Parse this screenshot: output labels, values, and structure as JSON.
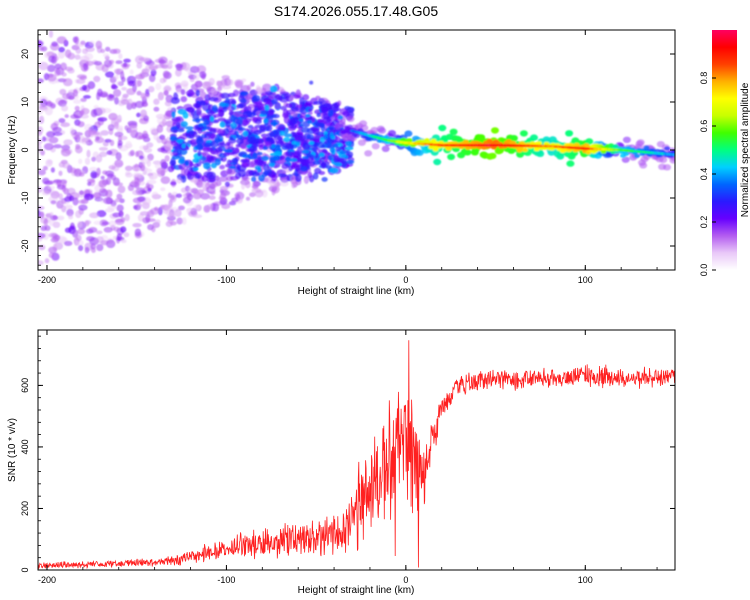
{
  "title": "S174.2026.055.17.48.G05",
  "chart_data": [
    {
      "type": "heatmap",
      "title": "S174.2026.055.17.48.G05",
      "xlabel": "Height of straight line (km)",
      "ylabel": "Frequency (Hz)",
      "xlim": [
        -205,
        150
      ],
      "ylim": [
        -25,
        25
      ],
      "x_ticks": [
        -200,
        -100,
        0,
        100
      ],
      "y_ticks": [
        -20,
        -10,
        0,
        10,
        20
      ],
      "colorbar": {
        "label": "Normalized spectral amplitude",
        "range": [
          0,
          1
        ],
        "ticks": [
          0.0,
          0.2,
          0.4,
          0.6,
          0.8
        ],
        "colors": [
          "#ffffff",
          "#e9c8f8",
          "#b35cf0",
          "#6600ff",
          "#2a1aff",
          "#0066ff",
          "#00d0ff",
          "#00ff80",
          "#40ff00",
          "#c8ff00",
          "#ffff00",
          "#ffb000",
          "#ff4000",
          "#ff0000",
          "#ff0060"
        ]
      },
      "ridge": {
        "x": [
          -30,
          -10,
          0,
          20,
          50,
          80,
          100,
          120,
          150
        ],
        "freq": [
          4,
          2,
          1.5,
          1,
          1,
          0.8,
          0.3,
          0,
          -1
        ],
        "amplitude": [
          0.35,
          0.55,
          0.7,
          0.85,
          0.95,
          0.8,
          0.9,
          0.55,
          0.4
        ]
      },
      "noise_region": {
        "x": [
          -205,
          -30
        ],
        "freq_spread_hz": 25
      }
    },
    {
      "type": "line",
      "xlabel": "Height of straight line (km)",
      "ylabel": "SNR (10 * v/v)",
      "xlim": [
        -205,
        150
      ],
      "ylim": [
        0,
        780
      ],
      "x_ticks": [
        -200,
        -100,
        0,
        100
      ],
      "y_ticks": [
        0,
        200,
        400,
        600
      ],
      "series": [
        {
          "name": "SNR",
          "color": "#ff2020",
          "envelope_x": [
            -205,
            -160,
            -130,
            -110,
            -90,
            -70,
            -50,
            -40,
            -30,
            -20,
            -10,
            -5,
            0,
            5,
            10,
            15,
            20,
            30,
            50,
            80,
            100,
            120,
            150
          ],
          "envelope_mean": [
            15,
            20,
            30,
            55,
            80,
            100,
            100,
            120,
            160,
            280,
            330,
            380,
            400,
            360,
            300,
            420,
            520,
            600,
            620,
            625,
            630,
            625,
            628
          ],
          "envelope_spread": [
            15,
            15,
            25,
            40,
            60,
            80,
            90,
            100,
            140,
            200,
            250,
            250,
            300,
            300,
            180,
            100,
            60,
            50,
            45,
            45,
            50,
            45,
            40
          ]
        }
      ]
    }
  ]
}
